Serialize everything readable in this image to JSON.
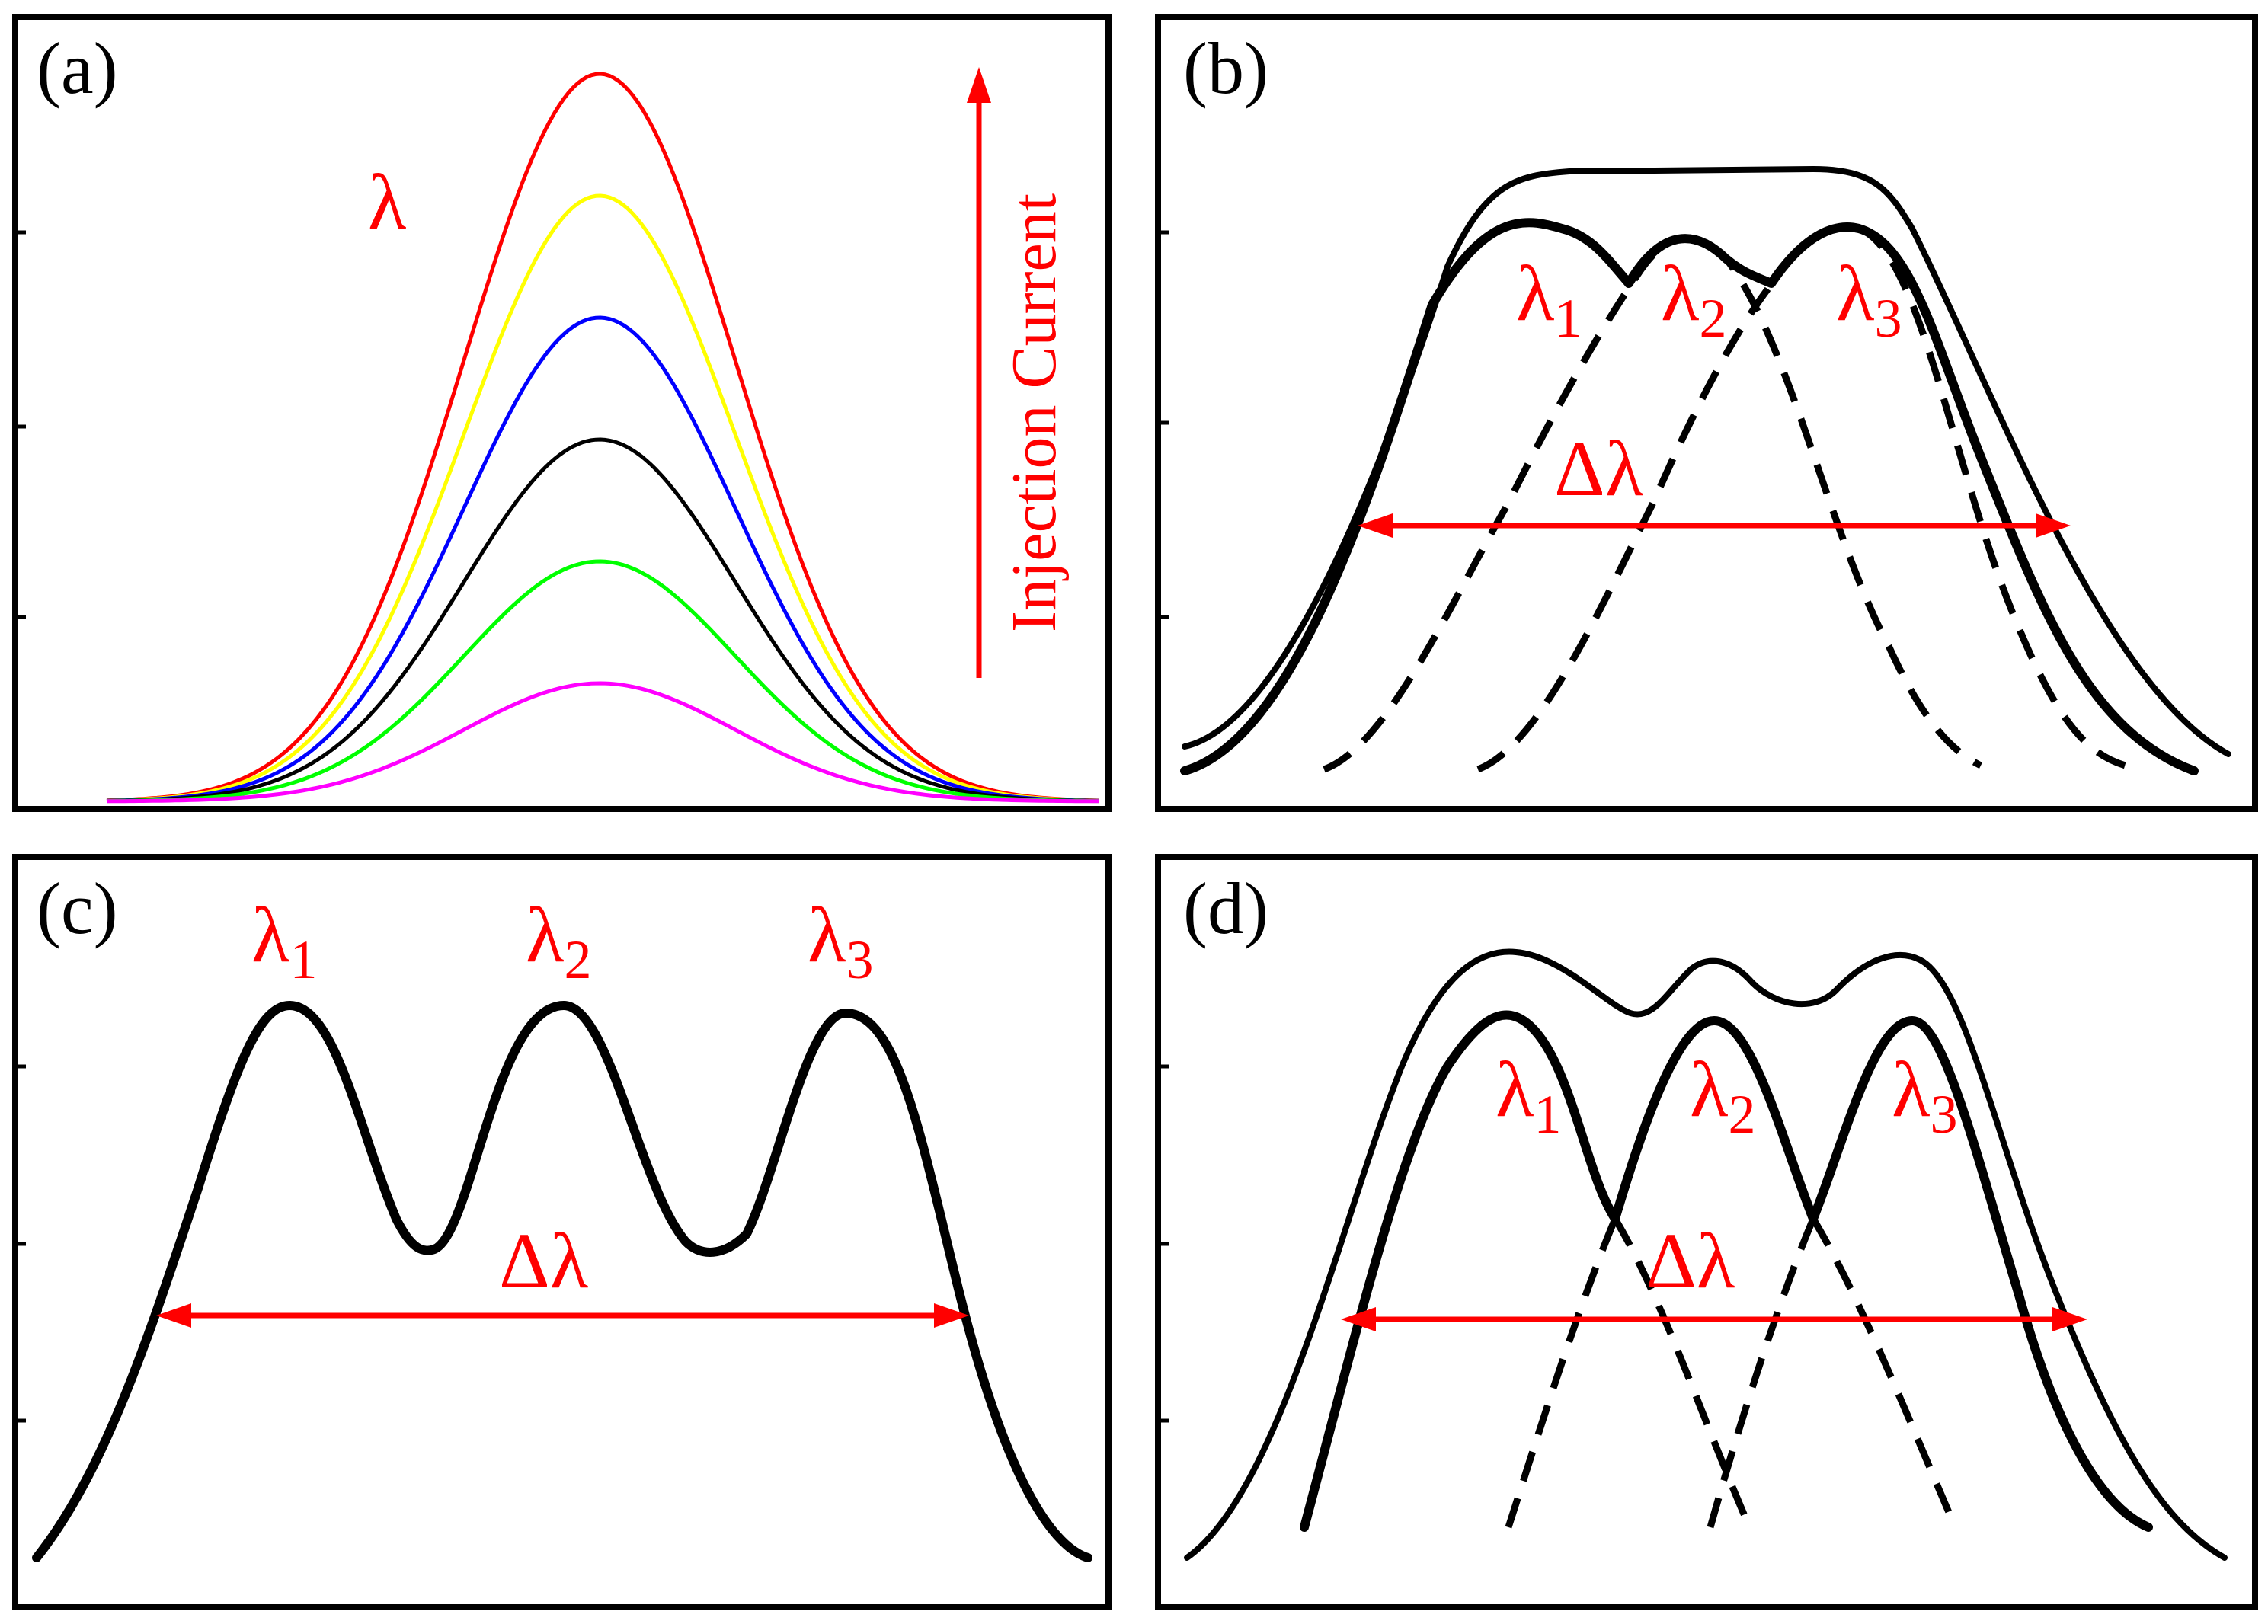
{
  "panels": {
    "a": {
      "label": "(a)",
      "lambda": "λ",
      "arrow_text": "Injection Current",
      "curve_colors": [
        "#ff0000",
        "#ffff00",
        "#0000ff",
        "#000000",
        "#00ff00",
        "#ff00ff"
      ]
    },
    "b": {
      "label": "(b)",
      "peaks": [
        {
          "symbol": "λ",
          "sub": "1"
        },
        {
          "symbol": "λ",
          "sub": "2"
        },
        {
          "symbol": "λ",
          "sub": "3"
        }
      ],
      "delta": "Δλ"
    },
    "c": {
      "label": "(c)",
      "peaks": [
        {
          "symbol": "λ",
          "sub": "1"
        },
        {
          "symbol": "λ",
          "sub": "2"
        },
        {
          "symbol": "λ",
          "sub": "3"
        }
      ],
      "delta": "Δλ"
    },
    "d": {
      "label": "(d)",
      "peaks": [
        {
          "symbol": "λ",
          "sub": "1"
        },
        {
          "symbol": "λ",
          "sub": "2"
        },
        {
          "symbol": "λ",
          "sub": "3"
        }
      ],
      "delta": "Δλ"
    }
  },
  "colors": {
    "annotation": "#ff0000",
    "curve": "#000000"
  }
}
